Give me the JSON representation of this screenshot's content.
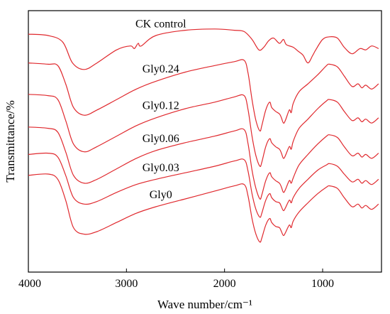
{
  "chart_data": {
    "type": "line",
    "title": "",
    "xlabel": "Wave number/cm⁻¹",
    "ylabel": "Transmittance/%",
    "xlim": [
      4000,
      400
    ],
    "x_reversed": true,
    "x_ticks": [
      4000,
      3000,
      2000,
      1000
    ],
    "x_tick_labels": [
      "4000",
      "3000",
      "2000",
      "1000"
    ],
    "y_ticks_shown": false,
    "ylim": [
      0,
      100
    ],
    "line_color": "#e0292e",
    "grid": false,
    "legend": "inline labels above each curve",
    "series": [
      {
        "name": "CK control",
        "x": [
          4000,
          3800,
          3650,
          3550,
          3430,
          3300,
          3100,
          2960,
          2920,
          2880,
          2850,
          2700,
          2400,
          2100,
          1900,
          1800,
          1720,
          1650,
          1600,
          1550,
          1500,
          1440,
          1400,
          1370,
          1300,
          1250,
          1200,
          1150,
          1100,
          1070,
          1000,
          930,
          850,
          780,
          700,
          620,
          560,
          500,
          430
        ],
        "y": [
          91.0,
          90.5,
          88.0,
          80.0,
          77.5,
          80.0,
          85.0,
          86.5,
          85.5,
          87.5,
          86.5,
          90.5,
          92.5,
          93.0,
          92.5,
          92.0,
          89.0,
          85.0,
          86.0,
          88.5,
          89.5,
          87.5,
          89.0,
          87.0,
          86.0,
          84.5,
          83.0,
          80.0,
          83.0,
          85.0,
          89.0,
          90.0,
          89.5,
          86.0,
          83.5,
          85.5,
          85.0,
          86.5,
          85.5
        ]
      },
      {
        "name": "Gly0.24",
        "x": [
          4000,
          3800,
          3700,
          3620,
          3540,
          3430,
          3300,
          3100,
          2900,
          2700,
          2400,
          2100,
          1900,
          1800,
          1760,
          1720,
          1680,
          1640,
          1620,
          1580,
          1540,
          1520,
          1480,
          1440,
          1420,
          1400,
          1380,
          1340,
          1320,
          1300,
          1240,
          1150,
          1050,
          960,
          930,
          850,
          780,
          700,
          640,
          600,
          560,
          500,
          430
        ],
        "y": [
          80.0,
          79.5,
          79.0,
          72.0,
          63.0,
          60.0,
          62.0,
          66.0,
          70.0,
          73.0,
          76.5,
          79.0,
          80.5,
          81.0,
          76.0,
          66.0,
          58.0,
          54.0,
          56.0,
          62.0,
          65.0,
          63.0,
          61.5,
          60.5,
          59.0,
          57.0,
          58.0,
          62.0,
          61.0,
          64.5,
          69.0,
          72.0,
          75.5,
          79.0,
          79.5,
          78.5,
          75.0,
          71.0,
          72.0,
          70.5,
          71.5,
          70.0,
          72.0
        ]
      },
      {
        "name": "Gly0.12",
        "x": [
          4000,
          3800,
          3700,
          3620,
          3540,
          3430,
          3300,
          3100,
          2900,
          2700,
          2400,
          2100,
          1900,
          1800,
          1760,
          1720,
          1680,
          1640,
          1620,
          1580,
          1540,
          1520,
          1480,
          1440,
          1420,
          1400,
          1380,
          1340,
          1320,
          1300,
          1240,
          1150,
          1050,
          960,
          930,
          850,
          780,
          700,
          640,
          600,
          560,
          500,
          430
        ],
        "y": [
          68.0,
          67.5,
          66.0,
          58.0,
          49.0,
          46.0,
          48.0,
          52.0,
          56.0,
          59.0,
          62.5,
          65.0,
          67.0,
          67.5,
          62.0,
          52.0,
          44.5,
          40.5,
          42.0,
          48.0,
          51.0,
          49.5,
          48.0,
          47.0,
          45.5,
          43.5,
          44.5,
          48.0,
          47.0,
          50.0,
          55.0,
          58.5,
          62.5,
          65.5,
          66.0,
          65.0,
          61.5,
          58.0,
          59.0,
          57.5,
          58.5,
          57.0,
          59.0
        ]
      },
      {
        "name": "Gly0.06",
        "x": [
          4000,
          3800,
          3700,
          3620,
          3540,
          3430,
          3300,
          3100,
          2900,
          2700,
          2400,
          2100,
          1900,
          1800,
          1760,
          1720,
          1680,
          1640,
          1620,
          1580,
          1540,
          1520,
          1480,
          1440,
          1420,
          1400,
          1380,
          1340,
          1320,
          1300,
          1240,
          1150,
          1050,
          960,
          930,
          850,
          780,
          700,
          640,
          600,
          560,
          500,
          430
        ],
        "y": [
          55.5,
          55.0,
          53.5,
          46.0,
          37.0,
          34.0,
          35.5,
          39.5,
          43.5,
          46.5,
          49.5,
          52.0,
          54.0,
          54.5,
          49.0,
          39.0,
          32.0,
          28.0,
          29.5,
          35.0,
          38.0,
          36.5,
          35.0,
          34.0,
          32.5,
          30.5,
          31.5,
          35.0,
          34.0,
          36.0,
          41.0,
          45.0,
          49.0,
          52.0,
          52.5,
          51.5,
          48.0,
          44.5,
          45.5,
          44.0,
          45.0,
          43.5,
          45.5
        ]
      },
      {
        "name": "Gly0.03",
        "x": [
          4000,
          3800,
          3700,
          3620,
          3540,
          3430,
          3300,
          3100,
          2900,
          2700,
          2400,
          2100,
          1900,
          1800,
          1760,
          1720,
          1680,
          1640,
          1620,
          1580,
          1540,
          1520,
          1480,
          1440,
          1420,
          1400,
          1380,
          1340,
          1320,
          1300,
          1240,
          1150,
          1050,
          960,
          930,
          850,
          780,
          700,
          640,
          600,
          560,
          500,
          430
        ],
        "y": [
          45.0,
          45.5,
          44.0,
          37.0,
          28.5,
          26.0,
          27.0,
          30.5,
          33.5,
          35.5,
          38.0,
          40.5,
          42.5,
          43.0,
          38.5,
          30.0,
          24.0,
          21.0,
          22.5,
          27.5,
          30.0,
          28.5,
          27.0,
          26.5,
          25.0,
          23.5,
          24.5,
          27.5,
          26.5,
          28.5,
          32.0,
          35.5,
          39.0,
          41.0,
          41.5,
          40.5,
          37.5,
          34.5,
          35.5,
          34.0,
          35.0,
          33.5,
          35.5
        ]
      },
      {
        "name": "Gly0",
        "x": [
          4000,
          3800,
          3700,
          3620,
          3540,
          3430,
          3300,
          3100,
          2900,
          2700,
          2400,
          2100,
          1900,
          1800,
          1760,
          1720,
          1680,
          1640,
          1620,
          1580,
          1540,
          1520,
          1480,
          1440,
          1420,
          1400,
          1380,
          1340,
          1320,
          1300,
          1240,
          1150,
          1050,
          960,
          930,
          850,
          780,
          700,
          640,
          600,
          560,
          500,
          430
        ],
        "y": [
          37.0,
          37.5,
          35.5,
          27.5,
          17.0,
          14.5,
          15.5,
          19.0,
          22.5,
          25.0,
          28.0,
          31.0,
          33.0,
          33.5,
          29.0,
          20.5,
          14.5,
          11.5,
          13.0,
          18.0,
          20.5,
          19.0,
          17.5,
          17.0,
          15.5,
          14.0,
          15.0,
          18.0,
          17.0,
          19.5,
          23.0,
          26.5,
          30.0,
          32.5,
          33.0,
          32.0,
          28.5,
          25.0,
          26.0,
          24.5,
          25.5,
          24.0,
          26.0
        ]
      }
    ],
    "series_label_anchor_x": [
      2650,
      2650,
      2650,
      2650,
      2650,
      2650
    ]
  }
}
